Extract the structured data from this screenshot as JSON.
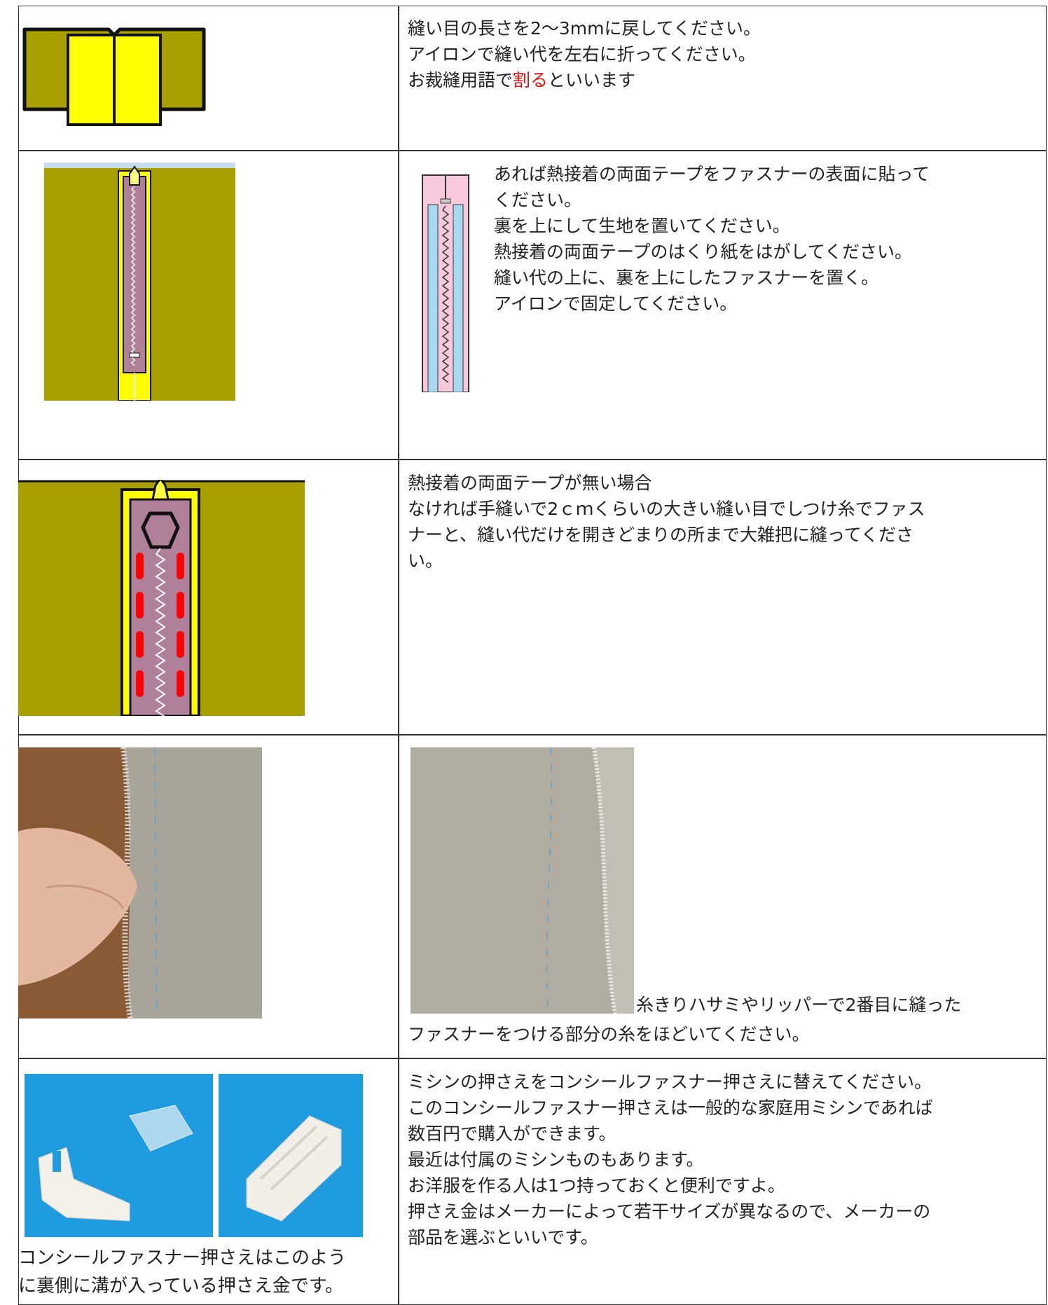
{
  "rows": [
    {
      "right": {
        "lines": [
          "縫い目の長さを2〜3mmに戻してください。",
          "アイロンで縫い代を左右に折ってください。"
        ],
        "last_line": {
          "before": "お裁縫用語で",
          "highlight": "割る",
          "after": "といいます"
        }
      }
    },
    {
      "right": {
        "lines": [
          " あれば熱接着の両面テープをファスナーの表面に貼って",
          "ください。",
          "裏を上にして生地を置いてください。",
          "熱接着の両面テープのはくり紙をはがしてください。",
          "縫い代の上に、裏を上にしたファスナーを置く。",
          "アイロンで固定してください。"
        ]
      }
    },
    {
      "right": {
        "lines": [
          "熱接着の両面テープが無い場合",
          "なければ手縫いで2ｃｍくらいの大きい縫い目でしつけ糸でファス",
          "ナーと、縫い代だけを開きどまりの所まで大雑把に縫ってくださ",
          "い。"
        ]
      }
    },
    {
      "right": {
        "lines": [
          "糸きりハサミやリッパーで2番目に縫った",
          "ファスナーをつける部分の糸をほどいてください。"
        ]
      }
    },
    {
      "left": {
        "lines": [
          "コンシールファスナー押さえはこのよう",
          "に裏側に溝が入っている押さえ金です。"
        ]
      },
      "right": {
        "lines": [
          " ミシンの押さえをコンシールファスナー押さえに替えてください。",
          "このコンシールファスナー押さえは一般的な家庭用ミシンであれば",
          "数百円で購入ができます。",
          "最近は付属のミシンものもあります。",
          "お洋服を作る人は1つ持っておくと便利ですよ。",
          "押さえ金はメーカーによって若干サイズが異なるので、メーカーの",
          "部品を選ぶといいです。"
        ]
      }
    }
  ]
}
